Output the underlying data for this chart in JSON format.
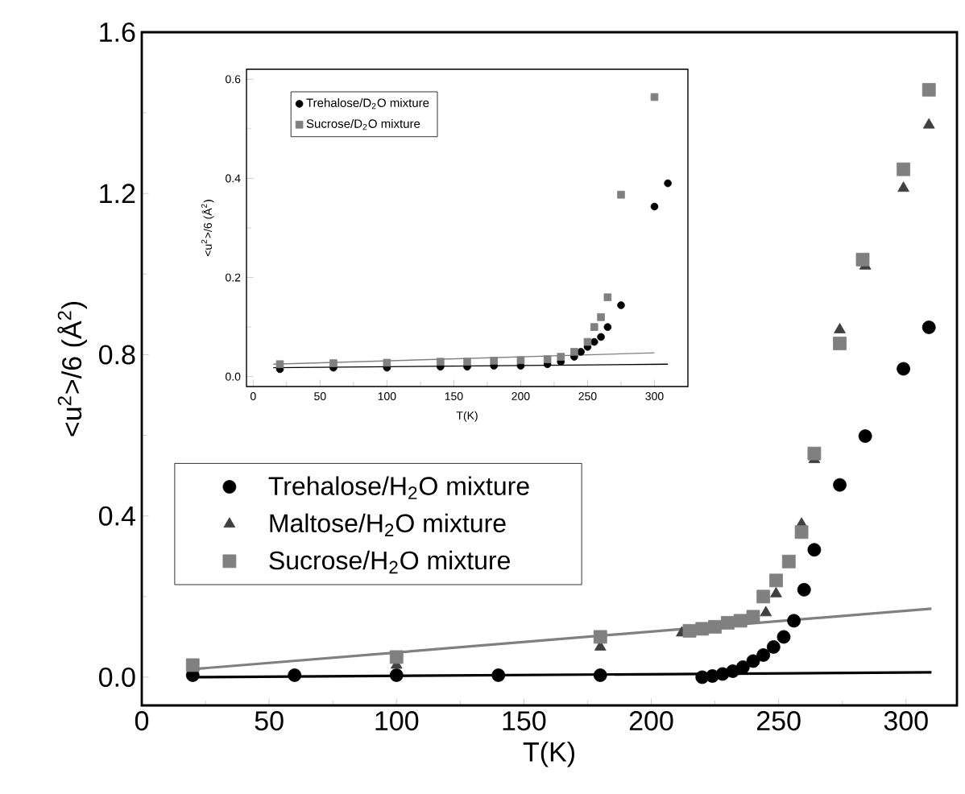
{
  "chart_data": [
    {
      "type": "scatter",
      "xlabel": "T(K)",
      "ylabel": "<u$^{2}$>/6 (Å$^{2}$)",
      "xlim": [
        0,
        320
      ],
      "ylim": [
        -0.07,
        1.6
      ],
      "xticks": [
        0,
        50,
        100,
        150,
        200,
        250,
        300
      ],
      "yticks": [
        {
          "value": 0,
          "label": "0.0"
        },
        {
          "value": 0.4,
          "label": "0.4"
        },
        {
          "value": 0.8,
          "label": "0.8"
        },
        {
          "value": 1.2,
          "label": "1.2"
        },
        {
          "value": 1.6,
          "label": "1.6"
        }
      ],
      "legend": "left",
      "series": [
        {
          "type": "line",
          "color": "#808080",
          "x": [
            20,
            310
          ],
          "values": [
            0.02,
            0.17
          ]
        },
        {
          "type": "line",
          "color": "#000000",
          "x": [
            20,
            310
          ],
          "values": [
            0.0,
            0.012
          ]
        },
        {
          "name": "Trehalose/H$_{2}$O mixture",
          "color": "#000000",
          "marker": "circle",
          "x": [
            20,
            60,
            100,
            140,
            180,
            220,
            224,
            228,
            232,
            236,
            240,
            244,
            248,
            252,
            256,
            260,
            264,
            274,
            284,
            299,
            309
          ],
          "values": [
            0.005,
            0.005,
            0.005,
            0.005,
            0.005,
            0,
            0.003,
            0.008,
            0.015,
            0.025,
            0.04,
            0.055,
            0.075,
            0.1,
            0.14,
            0.217,
            0.316,
            0.477,
            0.598,
            0.765,
            0.868
          ]
        },
        {
          "name": "Maltose/H$_{2}$O mixture",
          "color": "#404040",
          "marker": "triangle",
          "x": [
            100,
            180,
            212,
            227,
            245,
            249,
            259,
            264,
            274,
            284,
            299,
            309
          ],
          "values": [
            0.03,
            0.075,
            0.11,
            null,
            0.16,
            0.207,
            0.38,
            0.54,
            0.862,
            1.02,
            1.213,
            1.37
          ]
        },
        {
          "name": "Sucrose/H$_{2}$O mixture",
          "color": "#808080",
          "marker": "square",
          "x": [
            20,
            100,
            180,
            215,
            220,
            225,
            230,
            235,
            240,
            244,
            249,
            254,
            259,
            264,
            274,
            283,
            299,
            309
          ],
          "values": [
            0.03,
            0.05,
            0.1,
            0.115,
            0.12,
            0.125,
            0.135,
            0.14,
            0.15,
            0.2,
            0.24,
            0.287,
            0.36,
            0.555,
            0.828,
            1.036,
            1.26,
            1.457
          ]
        }
      ]
    },
    {
      "type": "scatter",
      "xlabel": "T(K)",
      "ylabel": "<u$^{2}$>/6 (Å$^{2}$)",
      "xlim": [
        -5,
        325
      ],
      "ylim": [
        -0.02,
        0.62
      ],
      "xticks": [
        0,
        50,
        100,
        150,
        200,
        250,
        300
      ],
      "yticks": [
        {
          "value": 0,
          "label": "0.0"
        },
        {
          "value": 0.2,
          "label": "0.2"
        },
        {
          "value": 0.4,
          "label": "0.4"
        },
        {
          "value": 0.6,
          "label": "0.6"
        }
      ],
      "legend": "top left",
      "series": [
        {
          "type": "line",
          "color": "#808080",
          "x": [
            15,
            300
          ],
          "values": [
            0.025,
            0.048
          ]
        },
        {
          "type": "line",
          "color": "#000000",
          "x": [
            15,
            310
          ],
          "values": [
            0.018,
            0.025
          ]
        },
        {
          "name": "Trehalose/D$_{2}$O mixture",
          "color": "#000000",
          "marker": "circle",
          "x": [
            20,
            60,
            100,
            140,
            160,
            180,
            200,
            220,
            230,
            240,
            245,
            250,
            255,
            260,
            265,
            275,
            300,
            310
          ],
          "values": [
            0.015,
            0.018,
            0.018,
            0.02,
            0.02,
            0.022,
            0.022,
            0.025,
            0.03,
            0.04,
            0.05,
            0.06,
            0.07,
            0.08,
            0.1,
            0.144,
            0.343,
            0.39
          ]
        },
        {
          "name": "Sucrose/D$_{2}$O mixture",
          "color": "#808080",
          "marker": "square",
          "x": [
            20,
            60,
            100,
            140,
            160,
            180,
            200,
            220,
            230,
            240,
            250,
            255,
            260,
            265,
            275,
            300
          ],
          "values": [
            0.025,
            0.027,
            0.028,
            0.03,
            0.03,
            0.032,
            0.033,
            0.035,
            0.04,
            0.05,
            0.07,
            0.1,
            0.12,
            0.16,
            0.367,
            0.564
          ]
        }
      ]
    }
  ]
}
